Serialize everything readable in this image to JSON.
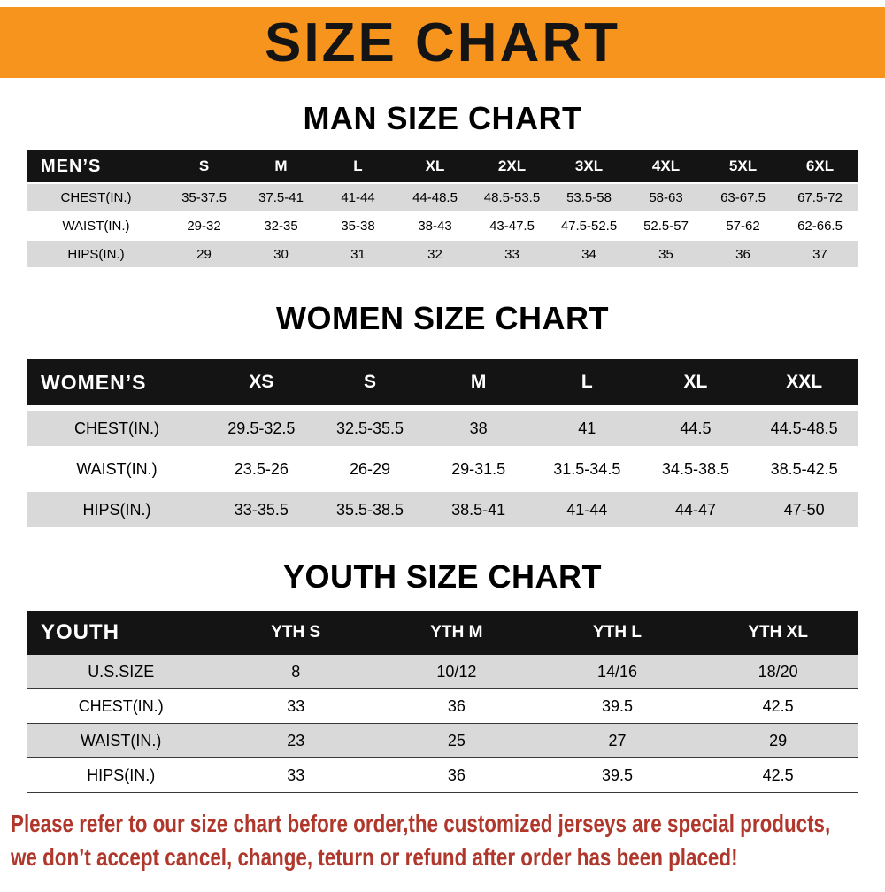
{
  "banner": {
    "title": "SIZE CHART"
  },
  "colors": {
    "banner_bg": "#F7941E",
    "table_header_bg": "#141414",
    "table_header_text": "#FFFFFF",
    "row_shaded_bg": "#D9D9D9",
    "footer_text": "#B0372B"
  },
  "sections": [
    {
      "heading": "MAN SIZE CHART",
      "table": {
        "header": [
          "MEN’S",
          "S",
          "M",
          "L",
          "XL",
          "2XL",
          "3XL",
          "4XL",
          "5XL",
          "6XL"
        ],
        "rows": [
          {
            "label": "CHEST(IN.)",
            "values": [
              "35-37.5",
              "37.5-41",
              "41-44",
              "44-48.5",
              "48.5-53.5",
              "53.5-58",
              "58-63",
              "63-67.5",
              "67.5-72"
            ]
          },
          {
            "label": "WAIST(IN.)",
            "values": [
              "29-32",
              "32-35",
              "35-38",
              "38-43",
              "43-47.5",
              "47.5-52.5",
              "52.5-57",
              "57-62",
              "62-66.5"
            ]
          },
          {
            "label": "HIPS(IN.)",
            "values": [
              "29",
              "30",
              "31",
              "32",
              "33",
              "34",
              "35",
              "36",
              "37"
            ]
          }
        ]
      }
    },
    {
      "heading": "WOMEN SIZE CHART",
      "table": {
        "header": [
          "WOMEN’S",
          "XS",
          "S",
          "M",
          "L",
          "XL",
          "XXL"
        ],
        "rows": [
          {
            "label": "CHEST(IN.)",
            "values": [
              "29.5-32.5",
              "32.5-35.5",
              "38",
              "41",
              "44.5",
              "44.5-48.5"
            ]
          },
          {
            "label": "WAIST(IN.)",
            "values": [
              "23.5-26",
              "26-29",
              "29-31.5",
              "31.5-34.5",
              "34.5-38.5",
              "38.5-42.5"
            ]
          },
          {
            "label": "HIPS(IN.)",
            "values": [
              "33-35.5",
              "35.5-38.5",
              "38.5-41",
              "41-44",
              "44-47",
              "47-50"
            ]
          }
        ]
      }
    },
    {
      "heading": "YOUTH SIZE CHART",
      "table": {
        "header": [
          "YOUTH",
          "YTH S",
          "YTH M",
          "YTH L",
          "YTH XL"
        ],
        "rows": [
          {
            "label": "U.S.SIZE",
            "values": [
              "8",
              "10/12",
              "14/16",
              "18/20"
            ]
          },
          {
            "label": "CHEST(IN.)",
            "values": [
              "33",
              "36",
              "39.5",
              "42.5"
            ]
          },
          {
            "label": "WAIST(IN.)",
            "values": [
              "23",
              "25",
              "27",
              "29"
            ]
          },
          {
            "label": "HIPS(IN.)",
            "values": [
              "33",
              "36",
              "39.5",
              "42.5"
            ]
          }
        ]
      }
    }
  ],
  "footer": {
    "line1": "Please refer to our size chart before order,the customized jerseys are special products,",
    "line2": "we don’t accept cancel, change, teturn or refund after order has been placed!"
  }
}
